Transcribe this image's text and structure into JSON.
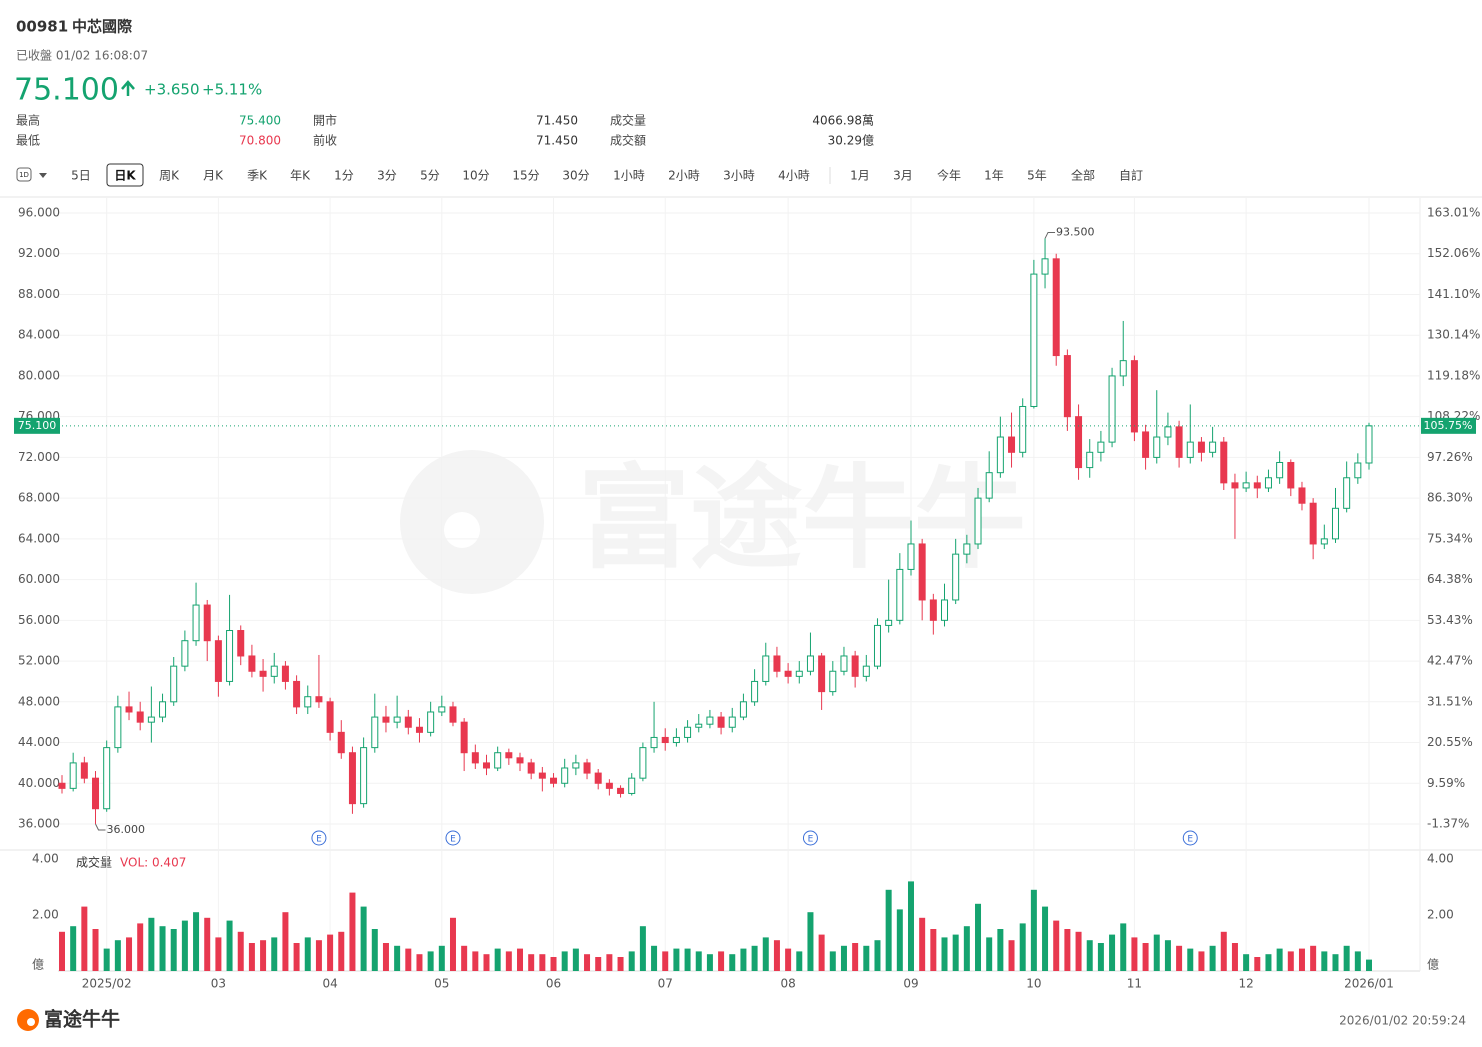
{
  "header": {
    "code": "00981",
    "name": "中芯國際",
    "status": "已收盤 01/02 16:08:07",
    "price": "75.100",
    "change": "+3.650",
    "change_pct": "+5.11%"
  },
  "stats": [
    {
      "label": "最高",
      "value": "75.400",
      "tone": "up"
    },
    {
      "label": "開市",
      "value": "71.450",
      "tone": "flat"
    },
    {
      "label": "成交量",
      "value": "4066.98萬",
      "tone": "flat"
    },
    {
      "label": "最低",
      "value": "70.800",
      "tone": "down"
    },
    {
      "label": "前收",
      "value": "71.450",
      "tone": "flat"
    },
    {
      "label": "成交額",
      "value": "30.29億",
      "tone": "flat"
    }
  ],
  "interval_icon": "1D",
  "tabs": [
    "5日",
    "日K",
    "周K",
    "月K",
    "季K",
    "年K",
    "1分",
    "3分",
    "5分",
    "10分",
    "15分",
    "30分",
    "1小時",
    "2小時",
    "3小時",
    "4小時",
    "1月",
    "3月",
    "今年",
    "1年",
    "5年",
    "全部",
    "自訂"
  ],
  "selected_tab": "日K",
  "watermark": "富途牛牛",
  "chart_data": {
    "type": "candlestick",
    "up_color": "#14a36f",
    "down_color": "#e8384f",
    "grid": true,
    "categories": [
      null,
      null,
      null,
      null,
      "2025/02",
      null,
      null,
      null,
      null,
      null,
      null,
      null,
      null,
      null,
      "03",
      null,
      null,
      null,
      null,
      null,
      null,
      null,
      null,
      null,
      "04",
      null,
      null,
      null,
      null,
      null,
      null,
      null,
      null,
      null,
      "05",
      null,
      null,
      null,
      null,
      null,
      null,
      null,
      null,
      null,
      "06",
      null,
      null,
      null,
      null,
      null,
      null,
      null,
      null,
      null,
      "07",
      null,
      null,
      null,
      null,
      null,
      null,
      null,
      null,
      null,
      null,
      "08",
      null,
      null,
      null,
      null,
      null,
      null,
      null,
      null,
      null,
      null,
      "09",
      null,
      null,
      null,
      null,
      null,
      null,
      null,
      null,
      null,
      null,
      "10",
      null,
      null,
      null,
      null,
      null,
      null,
      null,
      null,
      "11",
      null,
      null,
      null,
      null,
      null,
      null,
      null,
      null,
      null,
      "12",
      null,
      null,
      null,
      null,
      null,
      null,
      null,
      null,
      null,
      null,
      "2026/01"
    ],
    "events": [
      null,
      null,
      null,
      null,
      null,
      null,
      null,
      null,
      null,
      null,
      null,
      null,
      null,
      null,
      null,
      null,
      null,
      null,
      null,
      null,
      null,
      null,
      null,
      "E",
      null,
      null,
      null,
      null,
      null,
      null,
      null,
      null,
      null,
      null,
      null,
      "E",
      null,
      null,
      null,
      null,
      null,
      null,
      null,
      null,
      null,
      null,
      null,
      null,
      null,
      null,
      null,
      null,
      null,
      null,
      null,
      null,
      null,
      null,
      null,
      null,
      null,
      null,
      null,
      null,
      null,
      null,
      null,
      "E",
      null,
      null,
      null,
      null,
      null,
      null,
      null,
      null,
      null,
      null,
      null,
      null,
      null,
      null,
      null,
      null,
      null,
      null,
      null,
      null,
      null,
      null,
      null,
      null,
      null,
      null,
      null,
      null,
      null,
      null,
      null,
      null,
      null,
      "E",
      null,
      null,
      null,
      null,
      null,
      null,
      null,
      null,
      null,
      null,
      null,
      null,
      null,
      null,
      null,
      null,
      null
    ],
    "open": [
      40.0,
      39.5,
      42.0,
      40.5,
      37.5,
      43.5,
      47.5,
      47.0,
      46.0,
      46.5,
      48.0,
      51.5,
      54.0,
      57.5,
      54.0,
      50.0,
      55.0,
      52.5,
      51.0,
      50.5,
      51.5,
      50.0,
      47.5,
      48.5,
      48.0,
      45.0,
      43.0,
      38.0,
      43.5,
      46.5,
      46.0,
      46.5,
      45.5,
      45.0,
      47.0,
      47.5,
      46.0,
      43.0,
      42.0,
      41.5,
      43.0,
      42.5,
      42.0,
      41.0,
      40.5,
      40.0,
      41.5,
      42.0,
      41.0,
      40.0,
      39.5,
      39.0,
      40.5,
      43.5,
      44.5,
      44.0,
      44.5,
      45.5,
      45.8,
      46.5,
      45.5,
      46.5,
      48.0,
      50.0,
      52.5,
      51.0,
      50.5,
      51.0,
      52.5,
      49.0,
      51.0,
      52.5,
      50.5,
      51.5,
      55.5,
      56.0,
      61.0,
      63.5,
      58.0,
      56.0,
      58.0,
      62.5,
      63.5,
      68.0,
      70.5,
      74.0,
      72.5,
      77.0,
      90.0,
      91.5,
      82.0,
      76.0,
      71.0,
      72.5,
      73.5,
      80.0,
      81.5,
      74.5,
      72.0,
      74.0,
      75.0,
      72.0,
      73.5,
      72.5,
      73.5,
      69.5,
      69.0,
      69.5,
      69.0,
      70.0,
      71.5,
      69.0,
      67.5,
      63.5,
      64.0,
      67.0,
      70.0,
      71.45
    ],
    "high": [
      40.8,
      43.0,
      42.6,
      41.2,
      44.2,
      48.6,
      49.0,
      48.0,
      49.5,
      48.8,
      52.4,
      55.0,
      59.7,
      58.0,
      54.5,
      58.5,
      55.5,
      53.6,
      52.2,
      52.8,
      52.0,
      50.6,
      49.6,
      52.6,
      48.4,
      46.2,
      43.6,
      44.5,
      48.8,
      47.6,
      48.6,
      47.2,
      46.4,
      48.0,
      48.6,
      48.0,
      46.4,
      43.8,
      42.8,
      43.6,
      43.4,
      43.0,
      42.4,
      41.6,
      41.0,
      42.4,
      42.8,
      42.4,
      41.4,
      40.4,
      39.8,
      41.0,
      44.0,
      48.0,
      45.4,
      45.4,
      46.2,
      46.8,
      47.2,
      47.0,
      47.4,
      48.8,
      51.2,
      53.8,
      53.4,
      51.8,
      52.0,
      54.8,
      52.8,
      52.0,
      53.4,
      53.0,
      52.6,
      56.2,
      60.0,
      62.6,
      65.8,
      64.0,
      58.6,
      59.6,
      64.0,
      64.4,
      69.0,
      72.6,
      76.0,
      76.4,
      77.8,
      91.4,
      93.5,
      92.0,
      82.6,
      77.2,
      73.8,
      74.6,
      80.8,
      85.4,
      82.0,
      75.2,
      78.6,
      76.4,
      75.6,
      77.2,
      74.0,
      75.0,
      74.0,
      70.4,
      70.6,
      70.2,
      70.8,
      72.6,
      71.8,
      69.6,
      68.0,
      65.4,
      69.0,
      71.6,
      72.4,
      75.4
    ],
    "low": [
      39.0,
      39.2,
      40.0,
      36.0,
      37.2,
      43.0,
      46.2,
      45.2,
      44.0,
      46.0,
      47.6,
      51.0,
      53.5,
      52.0,
      48.5,
      49.6,
      51.6,
      50.4,
      49.0,
      49.8,
      49.2,
      46.8,
      46.8,
      47.4,
      44.2,
      42.4,
      37.0,
      37.6,
      43.0,
      45.0,
      45.4,
      44.8,
      44.0,
      44.6,
      46.6,
      45.6,
      41.2,
      41.4,
      40.8,
      41.2,
      41.8,
      41.2,
      40.4,
      39.2,
      39.6,
      39.6,
      40.8,
      40.4,
      39.4,
      38.8,
      38.6,
      38.8,
      40.2,
      43.0,
      43.2,
      43.6,
      44.0,
      45.0,
      45.4,
      44.8,
      45.0,
      46.2,
      47.6,
      49.6,
      50.4,
      49.8,
      49.8,
      50.6,
      47.2,
      48.6,
      50.6,
      49.4,
      50.0,
      51.2,
      54.8,
      55.6,
      60.4,
      56.0,
      54.6,
      55.4,
      57.6,
      61.6,
      63.0,
      67.6,
      70.0,
      71.0,
      72.0,
      76.8,
      88.6,
      81.0,
      74.6,
      69.8,
      70.0,
      71.6,
      73.0,
      79.0,
      73.6,
      70.8,
      71.4,
      73.2,
      71.0,
      71.4,
      71.6,
      72.0,
      68.8,
      64.0,
      68.6,
      68.0,
      68.6,
      69.4,
      68.2,
      66.8,
      62.0,
      63.0,
      63.6,
      66.6,
      69.4,
      70.8
    ],
    "close": [
      39.5,
      42.0,
      40.5,
      37.5,
      43.5,
      47.5,
      47.0,
      46.0,
      46.5,
      48.0,
      51.5,
      54.0,
      57.5,
      54.0,
      50.0,
      55.0,
      52.5,
      51.0,
      50.5,
      51.5,
      50.0,
      47.5,
      48.5,
      48.0,
      45.0,
      43.0,
      38.0,
      43.5,
      46.5,
      46.0,
      46.5,
      45.5,
      45.0,
      47.0,
      47.5,
      46.0,
      43.0,
      42.0,
      41.5,
      43.0,
      42.5,
      42.0,
      41.0,
      40.5,
      40.0,
      41.5,
      42.0,
      41.0,
      40.0,
      39.5,
      39.0,
      40.5,
      43.5,
      44.5,
      44.0,
      44.5,
      45.5,
      45.8,
      46.5,
      45.5,
      46.5,
      48.0,
      50.0,
      52.5,
      51.0,
      50.5,
      51.0,
      52.5,
      49.0,
      51.0,
      52.5,
      50.5,
      51.5,
      55.5,
      56.0,
      61.0,
      63.5,
      58.0,
      56.0,
      58.0,
      62.5,
      63.5,
      68.0,
      70.5,
      74.0,
      72.5,
      77.0,
      90.0,
      91.5,
      82.0,
      76.0,
      71.0,
      72.5,
      73.5,
      80.0,
      81.5,
      74.5,
      72.0,
      74.0,
      75.0,
      72.0,
      73.5,
      72.5,
      73.5,
      69.5,
      69.0,
      69.5,
      69.0,
      70.0,
      71.5,
      69.0,
      67.5,
      63.5,
      64.0,
      67.0,
      70.0,
      71.45,
      75.1
    ],
    "ylim": [
      36,
      96
    ],
    "yticks": [
      {
        "value": 96,
        "label": "96.000"
      },
      {
        "value": 92,
        "label": "92.000"
      },
      {
        "value": 88,
        "label": "88.000"
      },
      {
        "value": 84,
        "label": "84.000"
      },
      {
        "value": 80,
        "label": "80.000"
      },
      {
        "value": 76,
        "label": "76.000"
      },
      {
        "value": 72,
        "label": "72.000"
      },
      {
        "value": 68,
        "label": "68.000"
      },
      {
        "value": 64,
        "label": "64.000"
      },
      {
        "value": 60,
        "label": "60.000"
      },
      {
        "value": 56,
        "label": "56.000"
      },
      {
        "value": 52,
        "label": "52.000"
      },
      {
        "value": 48,
        "label": "48.000"
      },
      {
        "value": 44,
        "label": "44.000"
      },
      {
        "value": 40,
        "label": "40.000"
      },
      {
        "value": 36,
        "label": "36.000"
      }
    ],
    "y2lim": [
      -1.37,
      163.01
    ],
    "y2ticks": [
      {
        "value": 163.01,
        "label": "163.01%"
      },
      {
        "value": 152.06,
        "label": "152.06%"
      },
      {
        "value": 141.1,
        "label": "141.10%"
      },
      {
        "value": 130.14,
        "label": "130.14%"
      },
      {
        "value": 119.18,
        "label": "119.18%"
      },
      {
        "value": 108.22,
        "label": "108.22%"
      },
      {
        "value": 97.26,
        "label": "97.26%"
      },
      {
        "value": 86.3,
        "label": "86.30%"
      },
      {
        "value": 75.34,
        "label": "75.34%"
      },
      {
        "value": 64.38,
        "label": "64.38%"
      },
      {
        "value": 53.43,
        "label": "53.43%"
      },
      {
        "value": 42.47,
        "label": "42.47%"
      },
      {
        "value": 31.51,
        "label": "31.51%"
      },
      {
        "value": 20.55,
        "label": "20.55%"
      },
      {
        "value": 9.59,
        "label": "9.59%"
      },
      {
        "value": -1.37,
        "label": "-1.37%"
      }
    ],
    "current": {
      "value": 75.1,
      "label": "75.100"
    },
    "current_pct": {
      "value": 105.75,
      "label": "105.75%"
    },
    "high_label": {
      "value": 93.5,
      "label": "93.500"
    },
    "low_label": {
      "value": 36,
      "label": "36.000"
    },
    "volume": {
      "title": "成交量",
      "value_label": "VOL: 0.407",
      "ylim": [
        0,
        4
      ],
      "yticks": [
        {
          "value": 4,
          "label": "4.00"
        },
        {
          "value": 2,
          "label": "2.00"
        },
        {
          "value": 0,
          "label": "億"
        }
      ],
      "values": [
        1.4,
        1.6,
        2.3,
        1.5,
        0.8,
        1.1,
        1.2,
        1.7,
        1.9,
        1.6,
        1.5,
        1.8,
        2.1,
        1.9,
        1.2,
        1.8,
        1.4,
        1.0,
        1.1,
        1.2,
        2.1,
        1.0,
        1.2,
        1.1,
        1.3,
        1.4,
        2.8,
        2.3,
        1.5,
        1.0,
        0.9,
        0.8,
        0.6,
        0.7,
        0.9,
        1.9,
        0.9,
        0.7,
        0.6,
        0.8,
        0.7,
        0.8,
        0.6,
        0.6,
        0.5,
        0.7,
        0.8,
        0.6,
        0.5,
        0.6,
        0.5,
        0.7,
        1.6,
        0.9,
        0.7,
        0.8,
        0.8,
        0.7,
        0.6,
        0.7,
        0.6,
        0.8,
        0.9,
        1.2,
        1.1,
        0.8,
        0.7,
        2.1,
        1.3,
        0.7,
        0.9,
        1.0,
        0.9,
        1.1,
        2.9,
        2.2,
        3.2,
        1.9,
        1.5,
        1.2,
        1.3,
        1.6,
        2.4,
        1.2,
        1.5,
        1.1,
        1.7,
        2.9,
        2.3,
        1.8,
        1.5,
        1.4,
        1.1,
        1.0,
        1.3,
        1.7,
        1.2,
        1.0,
        1.3,
        1.1,
        0.9,
        0.8,
        0.7,
        0.9,
        1.4,
        1.0,
        0.6,
        0.5,
        0.6,
        0.8,
        0.7,
        0.8,
        0.9,
        0.7,
        0.6,
        0.9,
        0.7,
        0.407
      ]
    }
  },
  "footer": {
    "logo": "富途牛牛",
    "timestamp": "2026/01/02 20:59:24"
  }
}
